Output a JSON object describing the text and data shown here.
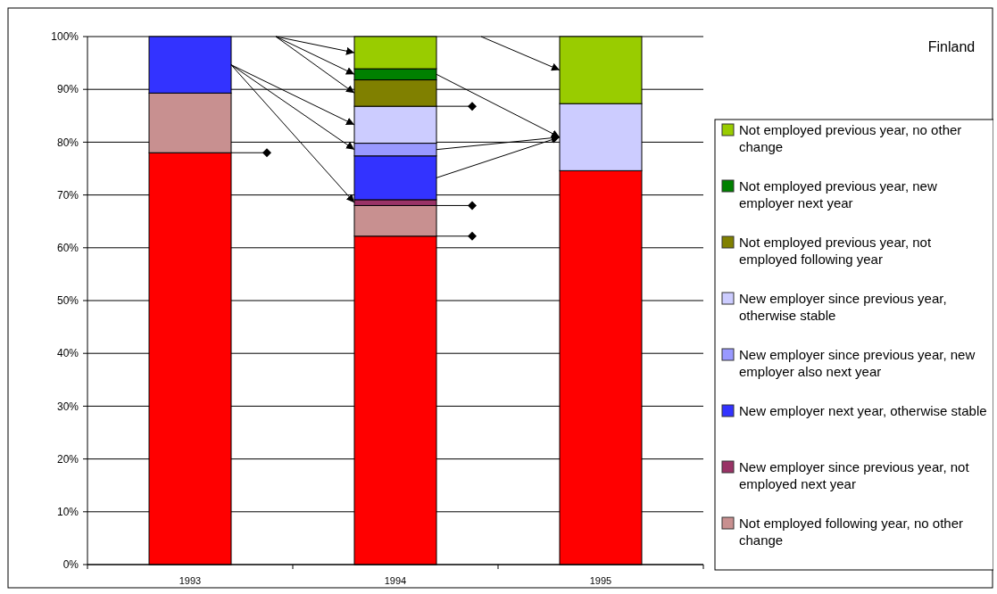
{
  "chart_data": {
    "type": "bar",
    "title": "Finland",
    "stacked": true,
    "categories": [
      "1993",
      "1994",
      "1995"
    ],
    "series": [
      {
        "color": "#ff0000",
        "values": [
          78,
          62.2,
          74.6
        ]
      },
      {
        "name": "Not employed following year, no other change",
        "color": "#c89090",
        "values": [
          11.3,
          5.8,
          null
        ]
      },
      {
        "name": "New employer since previous year, not employed next year",
        "color": "#993366",
        "values": [
          null,
          1.1,
          null
        ]
      },
      {
        "name": "New employer next year, otherwise stable",
        "color": "#3333ff",
        "values": [
          10.7,
          8.3,
          null
        ]
      },
      {
        "name": "New employer since previous year, new employer also next year",
        "color": "#9999ff",
        "values": [
          null,
          2.4,
          null
        ]
      },
      {
        "name": "New employer since previous year, otherwise stable",
        "color": "#ccccff",
        "values": [
          null,
          7,
          12.7
        ]
      },
      {
        "name": "Not employed previous year, not employed following year",
        "color": "#808000",
        "values": [
          null,
          5,
          null
        ]
      },
      {
        "name": "Not employed previous year, new employer next year",
        "color": "#008000",
        "values": [
          null,
          2.1,
          null
        ]
      },
      {
        "name": "Not employed previous year, no other change",
        "color": "#99cc00",
        "values": [
          null,
          6.1,
          12.7
        ]
      }
    ],
    "ylim": [
      0,
      100
    ],
    "yticks": [
      {
        "value": 0,
        "label": "0%"
      },
      {
        "value": 10,
        "label": "10%"
      },
      {
        "value": 20,
        "label": "20%"
      },
      {
        "value": 30,
        "label": "30%"
      },
      {
        "value": 40,
        "label": "40%"
      },
      {
        "value": 50,
        "label": "50%"
      },
      {
        "value": 60,
        "label": "60%"
      },
      {
        "value": 70,
        "label": "70%"
      },
      {
        "value": 80,
        "label": "80%"
      },
      {
        "value": 90,
        "label": "90%"
      },
      {
        "value": 100,
        "label": "100%"
      }
    ],
    "grid": "y",
    "legend": "right"
  }
}
